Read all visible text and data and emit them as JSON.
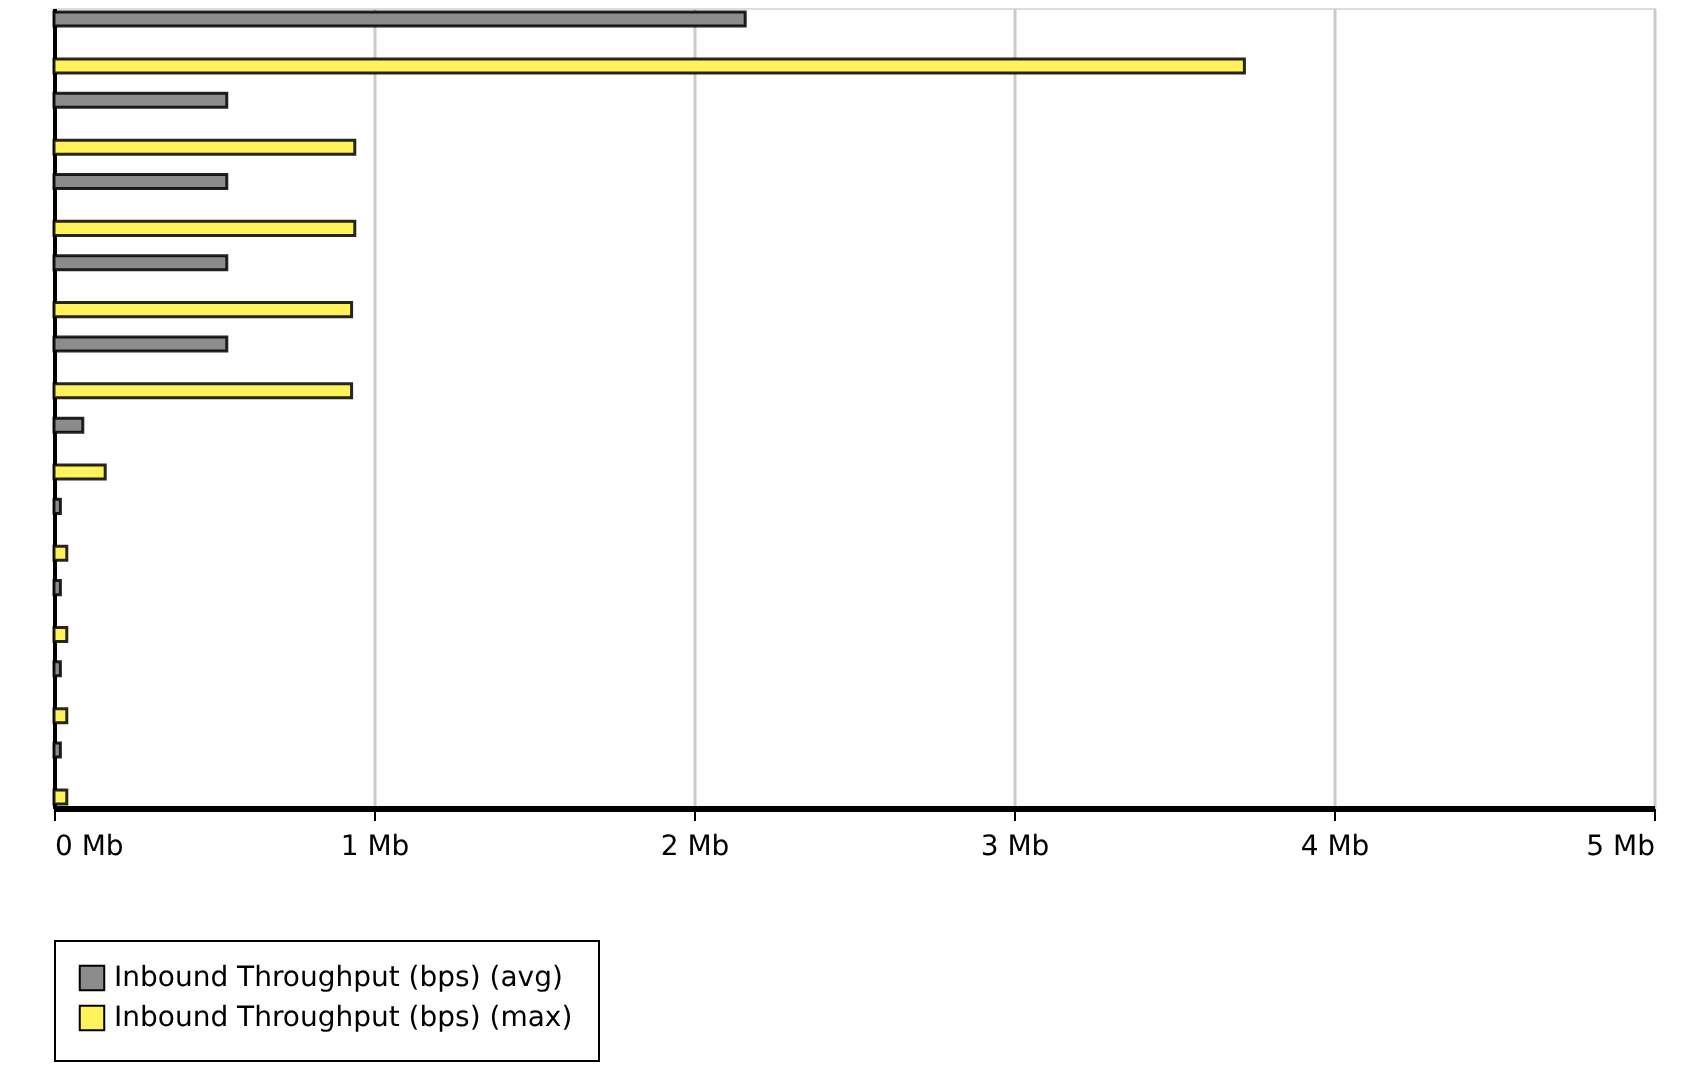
{
  "chart_data": {
    "type": "bar",
    "orientation": "horizontal",
    "categories": [
      null,
      null,
      null,
      null,
      null,
      null,
      null,
      null,
      null,
      null
    ],
    "series": [
      {
        "name": "Inbound Throughput (bps) (avg)",
        "color": "#8c8c8c",
        "values": [
          2.16,
          0.54,
          0.54,
          0.54,
          0.54,
          0.09,
          0.02,
          0.02,
          0.02,
          0.02
        ]
      },
      {
        "name": "Inbound Throughput (bps) (max)",
        "color": "#fff25a",
        "values": [
          3.72,
          0.94,
          0.94,
          0.93,
          0.93,
          0.16,
          0.04,
          0.04,
          0.04,
          0.04
        ]
      }
    ],
    "xlim": [
      0,
      5
    ],
    "xticks": [
      {
        "value": 0,
        "label": "0 Mb"
      },
      {
        "value": 1,
        "label": "1 Mb"
      },
      {
        "value": 2,
        "label": "2 Mb"
      },
      {
        "value": 3,
        "label": "3 Mb"
      },
      {
        "value": 4,
        "label": "4 Mb"
      },
      {
        "value": 5,
        "label": "5 Mb"
      }
    ],
    "grid": "x",
    "legend": "bottom",
    "tick_labels": "x"
  }
}
